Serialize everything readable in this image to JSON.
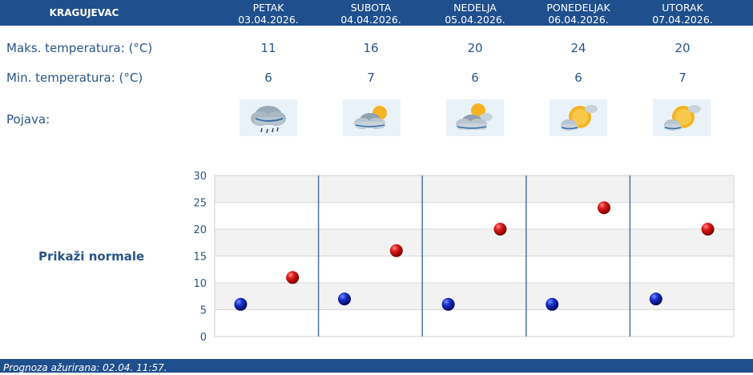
{
  "city": "KRAGUJEVAC",
  "days": [
    {
      "name": "PETAK",
      "date": "03.04.2026.",
      "max": "11",
      "min": "6",
      "icon": "cloud-rain-icon"
    },
    {
      "name": "SUBOTA",
      "date": "04.04.2026.",
      "max": "16",
      "min": "7",
      "icon": "cloud-sun-icon"
    },
    {
      "name": "NEDELJA",
      "date": "05.04.2026.",
      "max": "20",
      "min": "6",
      "icon": "cloud-sun-icon"
    },
    {
      "name": "PONEDELJAK",
      "date": "06.04.2026.",
      "max": "24",
      "min": "6",
      "icon": "sun-cloud-icon"
    },
    {
      "name": "UTORAK",
      "date": "07.04.2026.",
      "max": "20",
      "min": "7",
      "icon": "sun-cloud-icon"
    }
  ],
  "labels": {
    "max": "Maks. temperatura: (°C)",
    "min": "Min. temperatura: (°C)",
    "phenomenon": "Pojava:"
  },
  "normals_button": "Prikaži normale",
  "footer": "Prognoza ažurirana:  02.04. 11:57.",
  "colors": {
    "header": "#1f4f8c",
    "text": "#2a5585",
    "max_marker": "#cc0000",
    "min_marker": "#0a1fa8"
  },
  "chart_data": {
    "type": "scatter",
    "categories": [
      "PETAK",
      "SUBOTA",
      "NEDELJA",
      "PONEDELJAK",
      "UTORAK"
    ],
    "series": [
      {
        "values": [
          6,
          7,
          6,
          6,
          7
        ],
        "color": "#0a1fa8"
      },
      {
        "values": [
          11,
          16,
          20,
          24,
          20
        ],
        "color": "#cc0000"
      }
    ],
    "ylim": [
      0,
      30
    ],
    "yticks": [
      0,
      5,
      10,
      15,
      20,
      25,
      30
    ],
    "grid": true
  }
}
